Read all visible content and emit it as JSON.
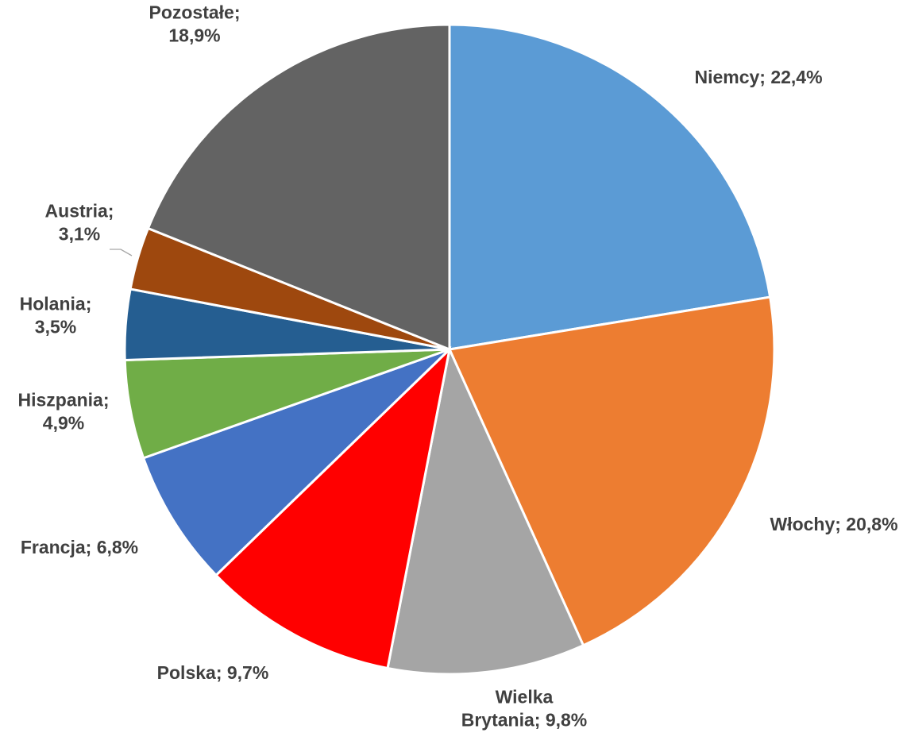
{
  "chart_data": {
    "type": "pie",
    "title": "",
    "start_angle_deg": 0,
    "direction": "clockwise",
    "legend": "none",
    "slices": [
      {
        "name": "Niemcy",
        "value": 22.4,
        "label_lines": [
          "Niemcy; 22,4%"
        ],
        "color": "#5b9bd5"
      },
      {
        "name": "Włochy",
        "value": 20.8,
        "label_lines": [
          "Włochy; 20,8%"
        ],
        "color": "#ed7d31"
      },
      {
        "name": "Wielka Brytania",
        "value": 9.8,
        "label_lines": [
          "Wielka",
          "Brytania; 9,8%"
        ],
        "color": "#a5a5a5"
      },
      {
        "name": "Polska",
        "value": 9.7,
        "label_lines": [
          "Polska; 9,7%"
        ],
        "color": "#ff0000"
      },
      {
        "name": "Francja",
        "value": 6.8,
        "label_lines": [
          "Francja; 6,8%"
        ],
        "color": "#4472c4"
      },
      {
        "name": "Hiszpania",
        "value": 4.9,
        "label_lines": [
          "Hiszpania;",
          "4,9%"
        ],
        "color": "#70ad47"
      },
      {
        "name": "Holania",
        "value": 3.5,
        "label_lines": [
          "Holania;",
          "3,5%"
        ],
        "color": "#255e91"
      },
      {
        "name": "Austria",
        "value": 3.1,
        "label_lines": [
          "Austria;",
          "3,1%"
        ],
        "color": "#9e480e"
      },
      {
        "name": "Pozostałe",
        "value": 18.9,
        "label_lines": [
          "Pozostałe;",
          "18,9%"
        ],
        "color": "#636363"
      }
    ]
  }
}
